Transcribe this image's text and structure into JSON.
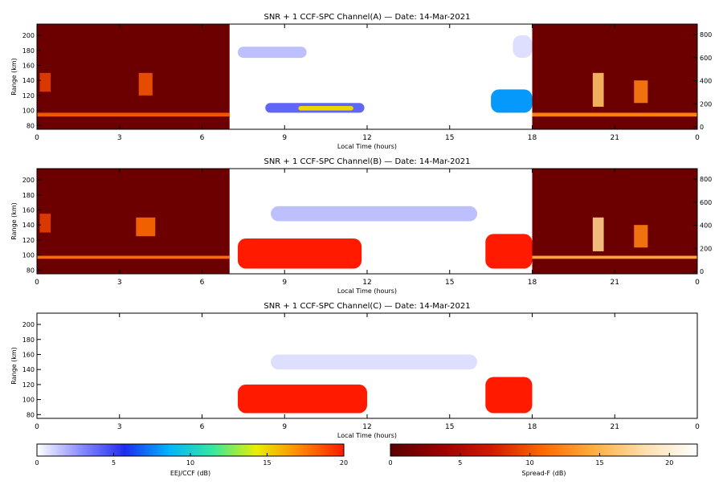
{
  "chart_data": [
    {
      "type": "heatmap",
      "title": "SNR + 1 CCF-SPC Channel(A) — Date: 14-Mar-2021",
      "xlabel": "Local Time (hours)",
      "ylabel": "Range (km)",
      "xlim": [
        0,
        24
      ],
      "ylim": [
        75,
        215
      ],
      "x_ticks": [
        "0",
        "3",
        "6",
        "9",
        "12",
        "15",
        "18",
        "21",
        "0"
      ],
      "y_ticks": [
        "80",
        "100",
        "120",
        "140",
        "160",
        "180",
        "200"
      ],
      "right_axis_ticks": [
        "0",
        "200",
        "400",
        "600",
        "800"
      ],
      "night_colormap": "Spread-F",
      "day_colormap": "EEJ/CCF",
      "day_span_hours": [
        7,
        18
      ],
      "features": [
        {
          "kind": "night-background",
          "x": [
            0,
            7
          ],
          "y": [
            75,
            215
          ],
          "level_db": 1
        },
        {
          "kind": "night-background",
          "x": [
            18,
            24
          ],
          "y": [
            75,
            215
          ],
          "level_db": 1
        },
        {
          "kind": "night-layer",
          "x": [
            0,
            7
          ],
          "y": [
            92,
            97
          ],
          "level_db": 10
        },
        {
          "kind": "night-layer",
          "x": [
            18,
            24
          ],
          "y": [
            92,
            97
          ],
          "level_db": 12
        },
        {
          "kind": "spread-f-plume",
          "x": [
            0.1,
            0.5
          ],
          "y": [
            125,
            150
          ],
          "level_db": 9
        },
        {
          "kind": "spread-f-plume",
          "x": [
            3.7,
            4.2
          ],
          "y": [
            120,
            150
          ],
          "level_db": 10
        },
        {
          "kind": "spread-f-plume",
          "x": [
            20.2,
            20.6
          ],
          "y": [
            105,
            150
          ],
          "level_db": 16
        },
        {
          "kind": "spread-f-plume",
          "x": [
            21.7,
            22.2
          ],
          "y": [
            110,
            140
          ],
          "level_db": 12
        },
        {
          "kind": "eej-echo",
          "x": [
            8.3,
            11.9
          ],
          "y": [
            97,
            110
          ],
          "level_db": 4
        },
        {
          "kind": "eej-echo",
          "x": [
            9.5,
            11.5
          ],
          "y": [
            100,
            106
          ],
          "level_db": 15
        },
        {
          "kind": "eej-echo",
          "x": [
            16.5,
            18
          ],
          "y": [
            97,
            128
          ],
          "level_db": 8
        },
        {
          "kind": "weak-echo",
          "x": [
            7.3,
            9.8
          ],
          "y": [
            170,
            185
          ],
          "level_db": 2
        },
        {
          "kind": "weak-echo",
          "x": [
            17.3,
            18
          ],
          "y": [
            170,
            200
          ],
          "level_db": 1
        }
      ]
    },
    {
      "type": "heatmap",
      "title": "SNR + 1 CCF-SPC Channel(B) — Date: 14-Mar-2021",
      "xlabel": "Local Time (hours)",
      "ylabel": "Range (km)",
      "xlim": [
        0,
        24
      ],
      "ylim": [
        75,
        215
      ],
      "x_ticks": [
        "0",
        "3",
        "6",
        "9",
        "12",
        "15",
        "18",
        "21",
        "0"
      ],
      "y_ticks": [
        "80",
        "100",
        "120",
        "140",
        "160",
        "180",
        "200"
      ],
      "right_axis_ticks": [
        "0",
        "200",
        "400",
        "600",
        "800"
      ],
      "night_colormap": "Spread-F",
      "day_colormap": "EEJ/CCF",
      "day_span_hours": [
        7,
        18
      ],
      "features": [
        {
          "kind": "night-background",
          "x": [
            0,
            7
          ],
          "y": [
            75,
            215
          ],
          "level_db": 1
        },
        {
          "kind": "night-background",
          "x": [
            18,
            24
          ],
          "y": [
            75,
            215
          ],
          "level_db": 1
        },
        {
          "kind": "night-layer",
          "x": [
            0,
            7
          ],
          "y": [
            95,
            99
          ],
          "level_db": 11
        },
        {
          "kind": "night-layer",
          "x": [
            18,
            24
          ],
          "y": [
            95,
            99
          ],
          "level_db": 14
        },
        {
          "kind": "spread-f-plume",
          "x": [
            0.1,
            0.5
          ],
          "y": [
            130,
            155
          ],
          "level_db": 9
        },
        {
          "kind": "spread-f-plume",
          "x": [
            3.6,
            4.3
          ],
          "y": [
            125,
            150
          ],
          "level_db": 11
        },
        {
          "kind": "spread-f-plume",
          "x": [
            20.2,
            20.6
          ],
          "y": [
            105,
            150
          ],
          "level_db": 17
        },
        {
          "kind": "spread-f-plume",
          "x": [
            21.7,
            22.2
          ],
          "y": [
            110,
            140
          ],
          "level_db": 12
        },
        {
          "kind": "eej-echo",
          "x": [
            7.3,
            11.8
          ],
          "y": [
            82,
            122
          ],
          "level_db": 20
        },
        {
          "kind": "eej-echo",
          "x": [
            16.3,
            18
          ],
          "y": [
            82,
            128
          ],
          "level_db": 20
        },
        {
          "kind": "weak-echo",
          "x": [
            8.5,
            16
          ],
          "y": [
            145,
            165
          ],
          "level_db": 2
        }
      ]
    },
    {
      "type": "heatmap",
      "title": "SNR + 1 CCF-SPC Channel(C) — Date: 14-Mar-2021",
      "xlabel": "Local Time (hours)",
      "ylabel": "Range (km)",
      "xlim": [
        0,
        24
      ],
      "ylim": [
        75,
        215
      ],
      "x_ticks": [
        "0",
        "3",
        "6",
        "9",
        "12",
        "15",
        "18",
        "21",
        "0"
      ],
      "y_ticks": [
        "80",
        "100",
        "120",
        "140",
        "160",
        "180",
        "200"
      ],
      "right_axis_ticks": [],
      "night_colormap": "none",
      "day_colormap": "EEJ/CCF",
      "day_span_hours": [
        7,
        18
      ],
      "features": [
        {
          "kind": "eej-echo",
          "x": [
            7.3,
            12
          ],
          "y": [
            82,
            120
          ],
          "level_db": 20
        },
        {
          "kind": "eej-echo",
          "x": [
            16.3,
            18
          ],
          "y": [
            82,
            130
          ],
          "level_db": 20
        },
        {
          "kind": "weak-echo",
          "x": [
            8.5,
            16
          ],
          "y": [
            140,
            160
          ],
          "level_db": 1
        }
      ]
    }
  ],
  "colorbars": [
    {
      "label": "EEJ/CCF (dB)",
      "ticks": [
        "0",
        "5",
        "10",
        "15",
        "20"
      ],
      "range": [
        0,
        20
      ],
      "colors": [
        "#ffffff",
        "#8a8cff",
        "#1f2cf0",
        "#00b4ff",
        "#33e8a0",
        "#e8f000",
        "#ff8800",
        "#ff1a00"
      ]
    },
    {
      "label": "Spread-F (dB)",
      "ticks": [
        "0",
        "5",
        "10",
        "15",
        "20"
      ],
      "range": [
        0,
        22
      ],
      "colors": [
        "#5a0000",
        "#9c0000",
        "#d41a00",
        "#ff6a00",
        "#ffb040",
        "#ffe0b0",
        "#ffffff"
      ]
    }
  ]
}
